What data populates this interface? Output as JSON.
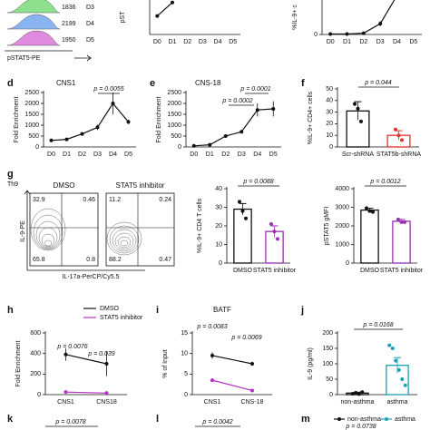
{
  "chart_data": [
    {
      "type": "flow-histogram",
      "xlabel": "pSTAT5-PE",
      "samples": [
        {
          "name": "D3",
          "value": 1836,
          "color": "#8ee08e"
        },
        {
          "name": "D4",
          "value": 2199,
          "color": "#8ab4f0"
        },
        {
          "name": "D5",
          "value": 1950,
          "color": "#e08ae0"
        }
      ]
    },
    {
      "type": "line",
      "ylabel": "pST",
      "categories": [
        "D0",
        "D1",
        "D2",
        "D3",
        "D4",
        "D5"
      ],
      "ylim": [
        0,
        1400
      ],
      "yticks": [],
      "series": [
        {
          "color": "#111111",
          "values": [
            750,
            1300,
            null,
            null,
            null,
            null
          ],
          "errors": [
            60,
            60,
            null,
            null,
            null,
            null
          ]
        }
      ]
    },
    {
      "type": "line",
      "ylabel": "%IL-9+ c",
      "categories": [
        "D0",
        "D1",
        "D2",
        "D3",
        "D4",
        "D5"
      ],
      "ylim": [
        0,
        8
      ],
      "yticks": [
        0
      ],
      "series": [
        {
          "color": "#111111",
          "values": [
            0.1,
            0.1,
            0.3,
            2.5,
            9,
            null
          ],
          "errors": [
            0.1,
            0.1,
            0.2,
            0.6,
            null,
            null
          ]
        }
      ]
    },
    {
      "type": "line",
      "label": "d",
      "title": "CNS1",
      "ylabel": "Fold Enrichment",
      "categories": [
        "D0",
        "D1",
        "D2",
        "D3",
        "D4",
        "D5"
      ],
      "ylim": [
        0,
        2500
      ],
      "yticks": [
        0,
        500,
        1000,
        1500,
        2000,
        2500
      ],
      "annotations": [
        "p = 0.0055"
      ],
      "series": [
        {
          "color": "#111111",
          "values": [
            300,
            350,
            600,
            900,
            2000,
            1150
          ],
          "errors": [
            50,
            60,
            80,
            120,
            500,
            100
          ]
        }
      ]
    },
    {
      "type": "line",
      "label": "e",
      "title": "CNS-18",
      "ylabel": "Fold Enrichment",
      "categories": [
        "D0",
        "D1",
        "D2",
        "D3",
        "D4",
        "D5"
      ],
      "ylim": [
        0,
        2500
      ],
      "yticks": [
        0,
        500,
        1000,
        1500,
        2000,
        2500
      ],
      "annotations": [
        "p = 0.0001",
        "p = 0.0002"
      ],
      "series": [
        {
          "color": "#111111",
          "values": [
            50,
            100,
            500,
            700,
            1700,
            1750
          ],
          "errors": [
            20,
            30,
            50,
            80,
            300,
            350
          ]
        }
      ]
    },
    {
      "type": "bar",
      "label": "f",
      "ylabel": "%IL-9+ CD4+ cells",
      "categories": [
        "Scr-shRNA",
        "STAT5b-shRNA"
      ],
      "ylim": [
        0,
        50
      ],
      "yticks": [
        0,
        10,
        20,
        30,
        40,
        50
      ],
      "annotations": [
        "p = 0.044"
      ],
      "values": [
        31,
        10
      ],
      "errors": [
        8,
        4
      ],
      "colors": [
        "#111111",
        "#e0342c"
      ],
      "points": [
        [
          37,
          33,
          22
        ],
        [
          15,
          10,
          6
        ]
      ]
    },
    {
      "type": "flow-dot",
      "label": "g",
      "cell": "Th9",
      "ylabel": "IL-9-PE",
      "xlabel": "IL-17a-PerCP/Cy5.5",
      "samples": [
        {
          "name": "DMSO",
          "quadrants": [
            32.9,
            0.46,
            65.8,
            0.8
          ]
        },
        {
          "name": "STAT5 inhibitor",
          "quadrants": [
            11.2,
            0.24,
            88.2,
            0.47
          ]
        }
      ]
    },
    {
      "type": "bar",
      "ylabel": "%IL-9+ CD4 T cells",
      "categories": [
        "DMSO",
        "STAT5 inhibitor"
      ],
      "ylim": [
        0,
        40
      ],
      "yticks": [
        0,
        10,
        20,
        30,
        40
      ],
      "annotations": [
        "p = 0.0088"
      ],
      "values": [
        29,
        17
      ],
      "errors": [
        3,
        3
      ],
      "colors": [
        "#111111",
        "#9b2fae"
      ],
      "points": [
        [
          33,
          28,
          24
        ],
        [
          21,
          17,
          13
        ]
      ]
    },
    {
      "type": "bar",
      "ylabel": "pSTAT5 gMFI",
      "categories": [
        "DMSO",
        "STAT5 inhibitor"
      ],
      "ylim": [
        0,
        4000
      ],
      "yticks": [
        0,
        1000,
        2000,
        3000,
        4000
      ],
      "annotations": [
        "p = 0.0012"
      ],
      "values": [
        2850,
        2250
      ],
      "errors": [
        100,
        100
      ],
      "colors": [
        "#111111",
        "#9b2fae"
      ],
      "points": [
        [
          2950,
          2800,
          2750
        ],
        [
          2350,
          2200,
          2200
        ]
      ]
    },
    {
      "type": "line",
      "label": "h",
      "ylabel": "Fold Enrichment",
      "categories": [
        "CNS1",
        "CNS18"
      ],
      "ylim": [
        0,
        600
      ],
      "yticks": [
        0,
        200,
        400,
        600
      ],
      "annotations": [
        "p = 0.0076",
        "p = 0.039"
      ],
      "series": [
        {
          "name": "DMSO",
          "color": "#111111",
          "values": [
            390,
            300
          ],
          "errors": [
            60,
            120
          ]
        },
        {
          "name": "STAT5 inhibitor",
          "color": "#b72fc4",
          "values": [
            25,
            15
          ],
          "errors": [
            5,
            5
          ]
        }
      ]
    },
    {
      "type": "line",
      "label": "i",
      "title": "BATF",
      "ylabel": "% of Input",
      "categories": [
        "CNS1",
        "CNS-18"
      ],
      "ylim": [
        0,
        15
      ],
      "yticks": [
        0,
        5,
        10,
        15
      ],
      "annotations": [
        "p = 0.0083",
        "p = 0.0069"
      ],
      "series": [
        {
          "color": "#111111",
          "values": [
            9.5,
            7.5
          ],
          "errors": [
            0.8,
            0.5
          ]
        },
        {
          "color": "#b72fc4",
          "values": [
            3.5,
            1
          ],
          "errors": [
            0.3,
            0.2
          ]
        }
      ]
    },
    {
      "type": "bar",
      "label": "j",
      "ylabel": "IL-9 (pg/ml)",
      "categories": [
        "non-asthma",
        "asthma"
      ],
      "ylim": [
        0,
        200
      ],
      "yticks": [
        0,
        50,
        100,
        150,
        200
      ],
      "annotations": [
        "p = 0.0168"
      ],
      "values": [
        5,
        95
      ],
      "errors": [
        3,
        25
      ],
      "colors": [
        "#111111",
        "#1a9fb5"
      ],
      "points": [
        [
          3,
          6,
          2,
          8
        ],
        [
          160,
          150,
          110,
          80,
          50,
          30
        ]
      ]
    },
    {
      "type": "fragment",
      "label": "k",
      "annotations": [
        "p = 0.0078"
      ]
    },
    {
      "type": "fragment",
      "label": "l",
      "annotations": [
        "p = 0.0042"
      ]
    },
    {
      "type": "fragment",
      "label": "m",
      "annotations": [
        "p = 0.0738"
      ],
      "series": [
        {
          "name": "non-asthma",
          "color": "#111111"
        },
        {
          "name": "asthma",
          "color": "#1a9fb5"
        }
      ]
    }
  ]
}
